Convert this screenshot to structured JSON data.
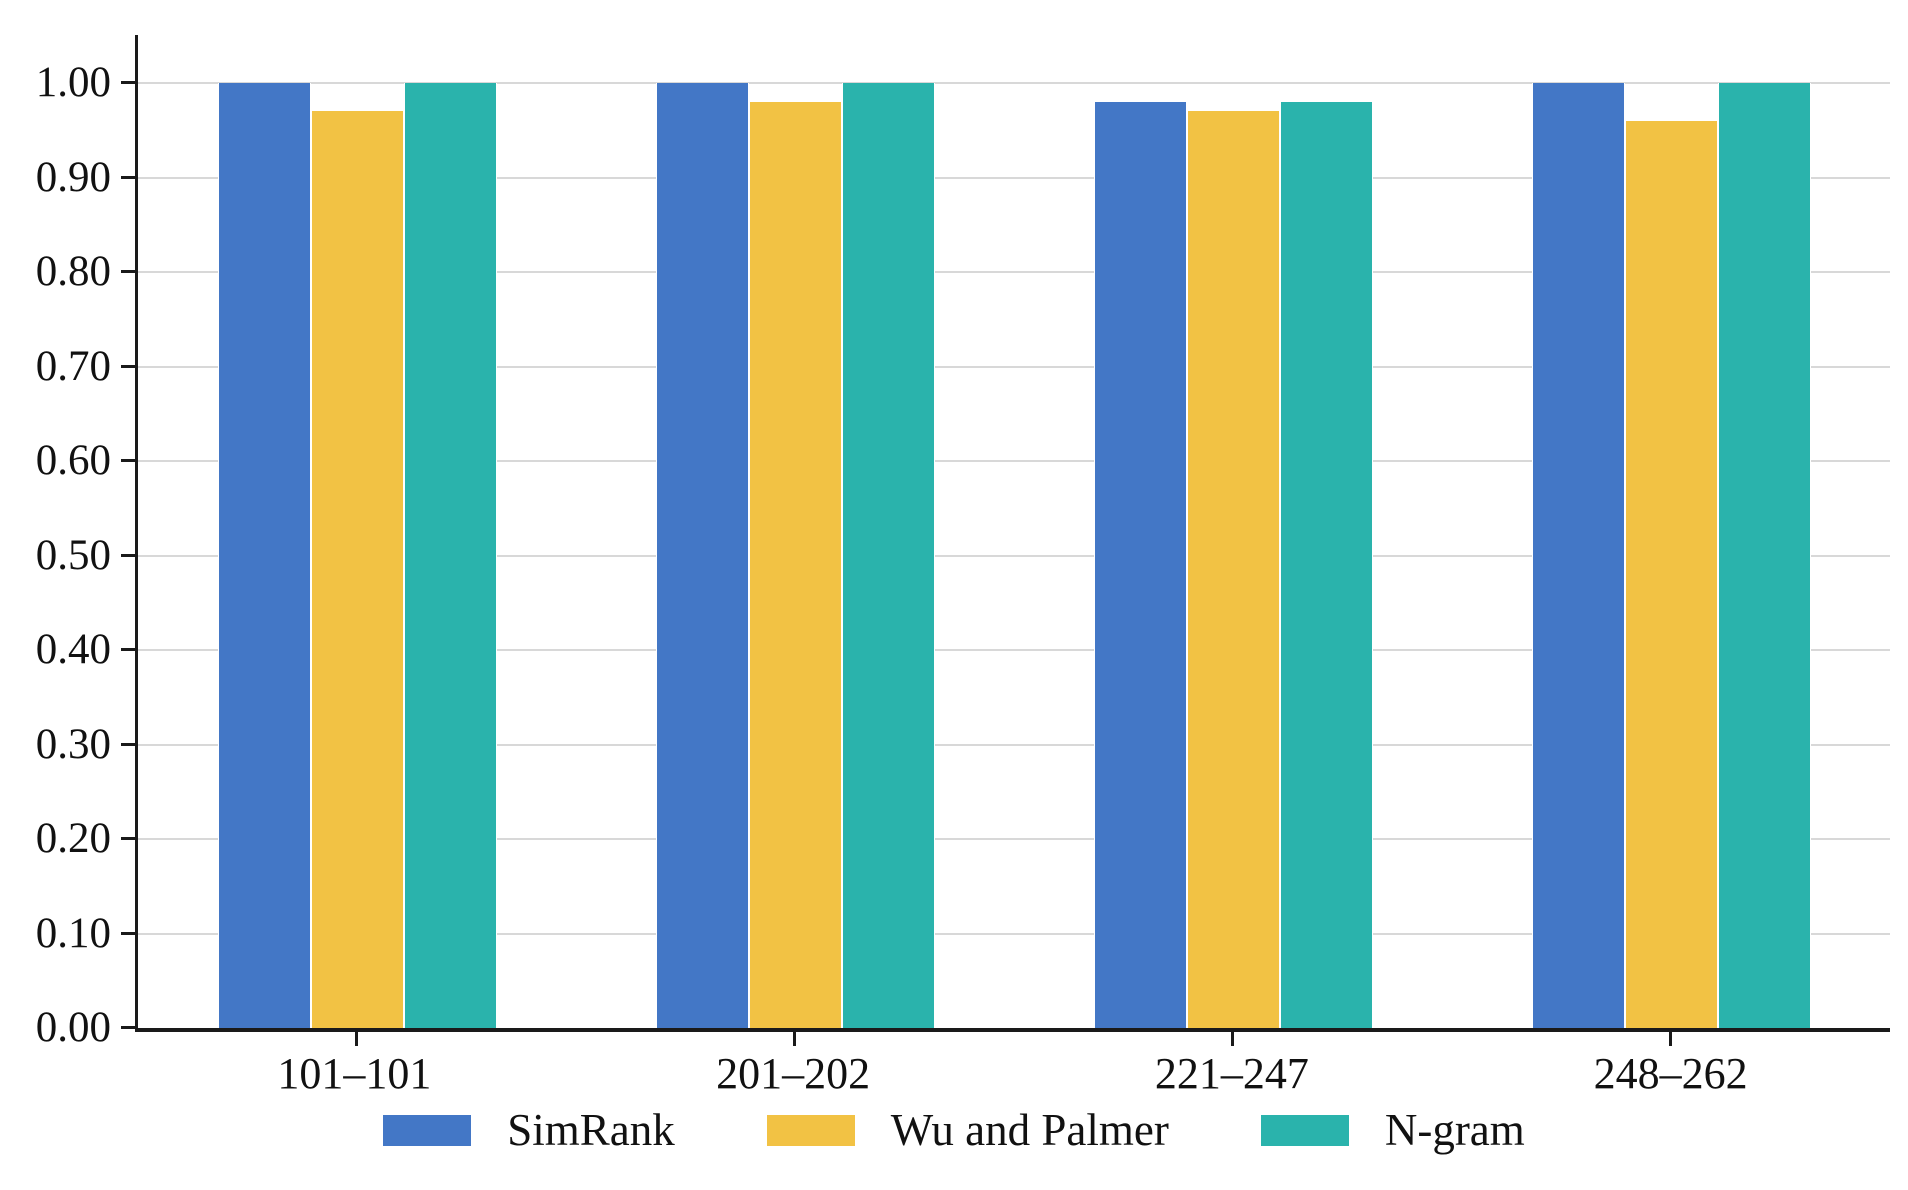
{
  "chart_data": {
    "type": "bar",
    "title": "",
    "xlabel": "",
    "ylabel": "",
    "categories": [
      "101–101",
      "201–202",
      "221–247",
      "248–262"
    ],
    "series": [
      {
        "name": "SimRank",
        "color": "#4377c6",
        "values": [
          1.0,
          1.0,
          0.98,
          1.0
        ]
      },
      {
        "name": "Wu and Palmer",
        "color": "#f2c244",
        "values": [
          0.97,
          0.98,
          0.97,
          0.96
        ]
      },
      {
        "name": "N-gram",
        "color": "#2ab3ac",
        "values": [
          1.0,
          1.0,
          0.98,
          1.0
        ]
      }
    ],
    "ylim": [
      0.0,
      1.0
    ],
    "yticks": [
      "0.00",
      "0.10",
      "0.20",
      "0.30",
      "0.40",
      "0.50",
      "0.60",
      "0.70",
      "0.80",
      "0.90",
      "1.00"
    ],
    "grid": "horizontal",
    "grid_color": "#d8d8d8",
    "axis_color": "#1a1a1a",
    "legend_position": "bottom"
  }
}
